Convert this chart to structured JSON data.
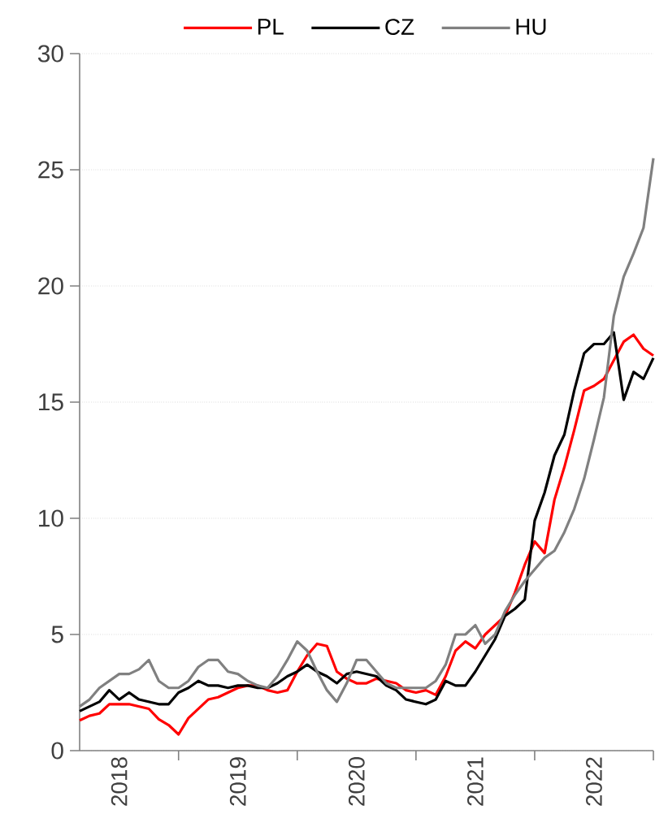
{
  "chart_data": {
    "type": "line",
    "x": [
      "2018-03",
      "2018-04",
      "2018-05",
      "2018-06",
      "2018-07",
      "2018-08",
      "2018-09",
      "2018-10",
      "2018-11",
      "2018-12",
      "2019-01",
      "2019-02",
      "2019-03",
      "2019-04",
      "2019-05",
      "2019-06",
      "2019-07",
      "2019-08",
      "2019-09",
      "2019-10",
      "2019-11",
      "2019-12",
      "2020-01",
      "2020-02",
      "2020-03",
      "2020-04",
      "2020-05",
      "2020-06",
      "2020-07",
      "2020-08",
      "2020-09",
      "2020-10",
      "2020-11",
      "2020-12",
      "2021-01",
      "2021-02",
      "2021-03",
      "2021-04",
      "2021-05",
      "2021-06",
      "2021-07",
      "2021-08",
      "2021-09",
      "2021-10",
      "2021-11",
      "2021-12",
      "2022-01",
      "2022-02",
      "2022-03",
      "2022-04",
      "2022-05",
      "2022-06",
      "2022-07",
      "2022-08",
      "2022-09",
      "2022-10",
      "2022-11",
      "2022-12",
      "2023-01"
    ],
    "series": [
      {
        "name": "PL",
        "color": "#ff0000",
        "values": [
          1.3,
          1.5,
          1.6,
          2.0,
          2.0,
          2.0,
          1.9,
          1.8,
          1.35,
          1.1,
          0.7,
          1.4,
          1.8,
          2.2,
          2.3,
          2.5,
          2.7,
          2.8,
          2.8,
          2.6,
          2.5,
          2.6,
          3.4,
          4.1,
          4.6,
          4.5,
          3.4,
          3.1,
          2.9,
          2.9,
          3.1,
          3.0,
          2.9,
          2.6,
          2.5,
          2.6,
          2.4,
          3.2,
          4.3,
          4.7,
          4.4,
          5.0,
          5.4,
          5.8,
          6.8,
          8.0,
          9.0,
          8.5,
          10.8,
          12.2,
          13.8,
          15.5,
          15.7,
          16.0,
          16.8,
          17.6,
          17.9,
          17.3,
          17.0
        ]
      },
      {
        "name": "CZ",
        "color": "#000000",
        "values": [
          1.7,
          1.9,
          2.1,
          2.6,
          2.2,
          2.5,
          2.2,
          2.1,
          2.0,
          2.0,
          2.5,
          2.7,
          3.0,
          2.8,
          2.8,
          2.7,
          2.8,
          2.8,
          2.7,
          2.7,
          2.9,
          3.2,
          3.4,
          3.7,
          3.4,
          3.2,
          2.9,
          3.3,
          3.4,
          3.3,
          3.2,
          2.8,
          2.6,
          2.2,
          2.1,
          2.0,
          2.2,
          3.0,
          2.8,
          2.8,
          3.4,
          4.1,
          4.8,
          5.8,
          6.1,
          6.5,
          9.9,
          11.1,
          12.7,
          13.6,
          15.5,
          17.1,
          17.5,
          17.5,
          18.0,
          15.1,
          16.3,
          16.0,
          16.9
        ]
      },
      {
        "name": "HU",
        "color": "#808080",
        "values": [
          1.9,
          2.2,
          2.7,
          3.0,
          3.3,
          3.3,
          3.5,
          3.9,
          3.0,
          2.7,
          2.7,
          3.0,
          3.6,
          3.9,
          3.9,
          3.4,
          3.3,
          3.0,
          2.8,
          2.7,
          3.2,
          3.9,
          4.7,
          4.3,
          3.4,
          2.6,
          2.1,
          2.9,
          3.9,
          3.9,
          3.4,
          2.9,
          2.7,
          2.7,
          2.7,
          2.7,
          3.0,
          3.7,
          5.0,
          5.0,
          5.4,
          4.6,
          5.0,
          6.0,
          6.7,
          7.3,
          7.8,
          8.3,
          8.6,
          9.4,
          10.4,
          11.7,
          13.4,
          15.2,
          18.7,
          20.4,
          21.4,
          22.5,
          25.5
        ]
      }
    ],
    "xlim": [
      "2018-03",
      "2023-01"
    ],
    "xticks": [
      {
        "value": "2018-07",
        "label": "2018"
      },
      {
        "value": "2019-07",
        "label": "2019"
      },
      {
        "value": "2020-07",
        "label": "2020"
      },
      {
        "value": "2021-07",
        "label": "2021"
      },
      {
        "value": "2022-07",
        "label": "2022"
      },
      {
        "value": "2019-01",
        "label": null
      },
      {
        "value": "2020-01",
        "label": null
      },
      {
        "value": "2021-01",
        "label": null
      },
      {
        "value": "2022-01",
        "label": null
      },
      {
        "value": "2023-01",
        "label": null
      }
    ],
    "ylim": [
      0,
      30
    ],
    "yticks": [
      0,
      5,
      10,
      15,
      20,
      25,
      30
    ],
    "grid": "y",
    "legend": "top",
    "marker": "none",
    "line_style": "solid"
  }
}
